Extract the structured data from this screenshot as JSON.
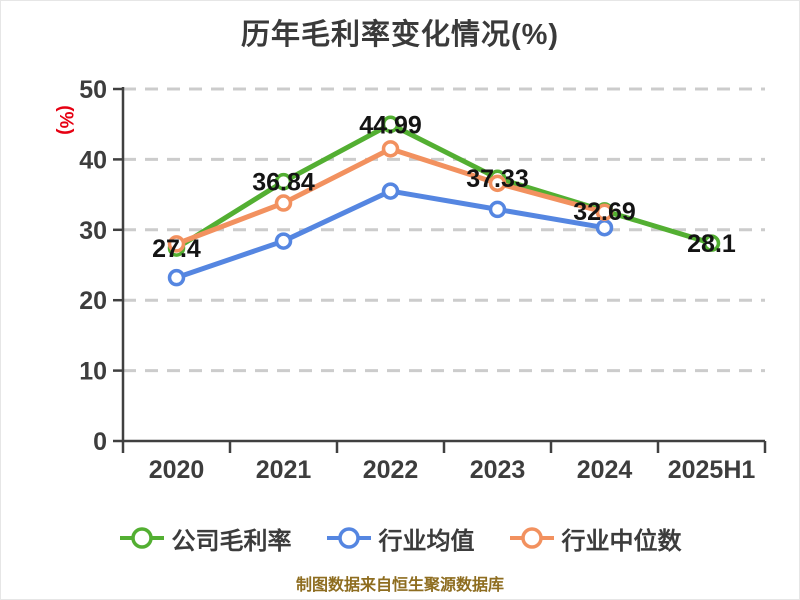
{
  "page": {
    "footer": "制图数据来自恒生聚源数据库"
  },
  "colors": {
    "title": "#3a3a3a",
    "axis": "#404040",
    "grid": "#cccccc",
    "tick_label": "#3d3d3d",
    "value_label": "#141414",
    "y_unit_label": "#e60012",
    "footer": "#8e6d20",
    "background": "#ffffff",
    "series_company": "#53af32",
    "series_industry_avg": "#5586e1",
    "series_industry_median": "#f2915f"
  },
  "chart_data": {
    "type": "line",
    "title": "历年毛利率变化情况(%)",
    "ylabel": "(%)",
    "categories": [
      "2020",
      "2021",
      "2022",
      "2023",
      "2024",
      "2025H1"
    ],
    "series": [
      {
        "name": "公司毛利率",
        "color": "#53af32",
        "values": [
          27.4,
          36.84,
          44.99,
          37.33,
          32.69,
          28.1
        ],
        "labeled": true
      },
      {
        "name": "行业均值",
        "color": "#5586e1",
        "values": [
          23.2,
          28.4,
          35.5,
          32.9,
          30.3,
          null
        ],
        "labeled": false
      },
      {
        "name": "行业中位数",
        "color": "#f2915f",
        "values": [
          28.0,
          33.8,
          41.5,
          36.6,
          32.5,
          null
        ],
        "labeled": false
      }
    ],
    "data_labels": [
      "27.4",
      "36.84",
      "44.99",
      "37.33",
      "32.69",
      "28.1"
    ],
    "ylim": [
      0,
      50
    ],
    "yticks": [
      0,
      10,
      20,
      30,
      40,
      50
    ],
    "grid": "horizontal-dashed",
    "legend_position": "bottom",
    "marker": "circle-white-fill"
  }
}
